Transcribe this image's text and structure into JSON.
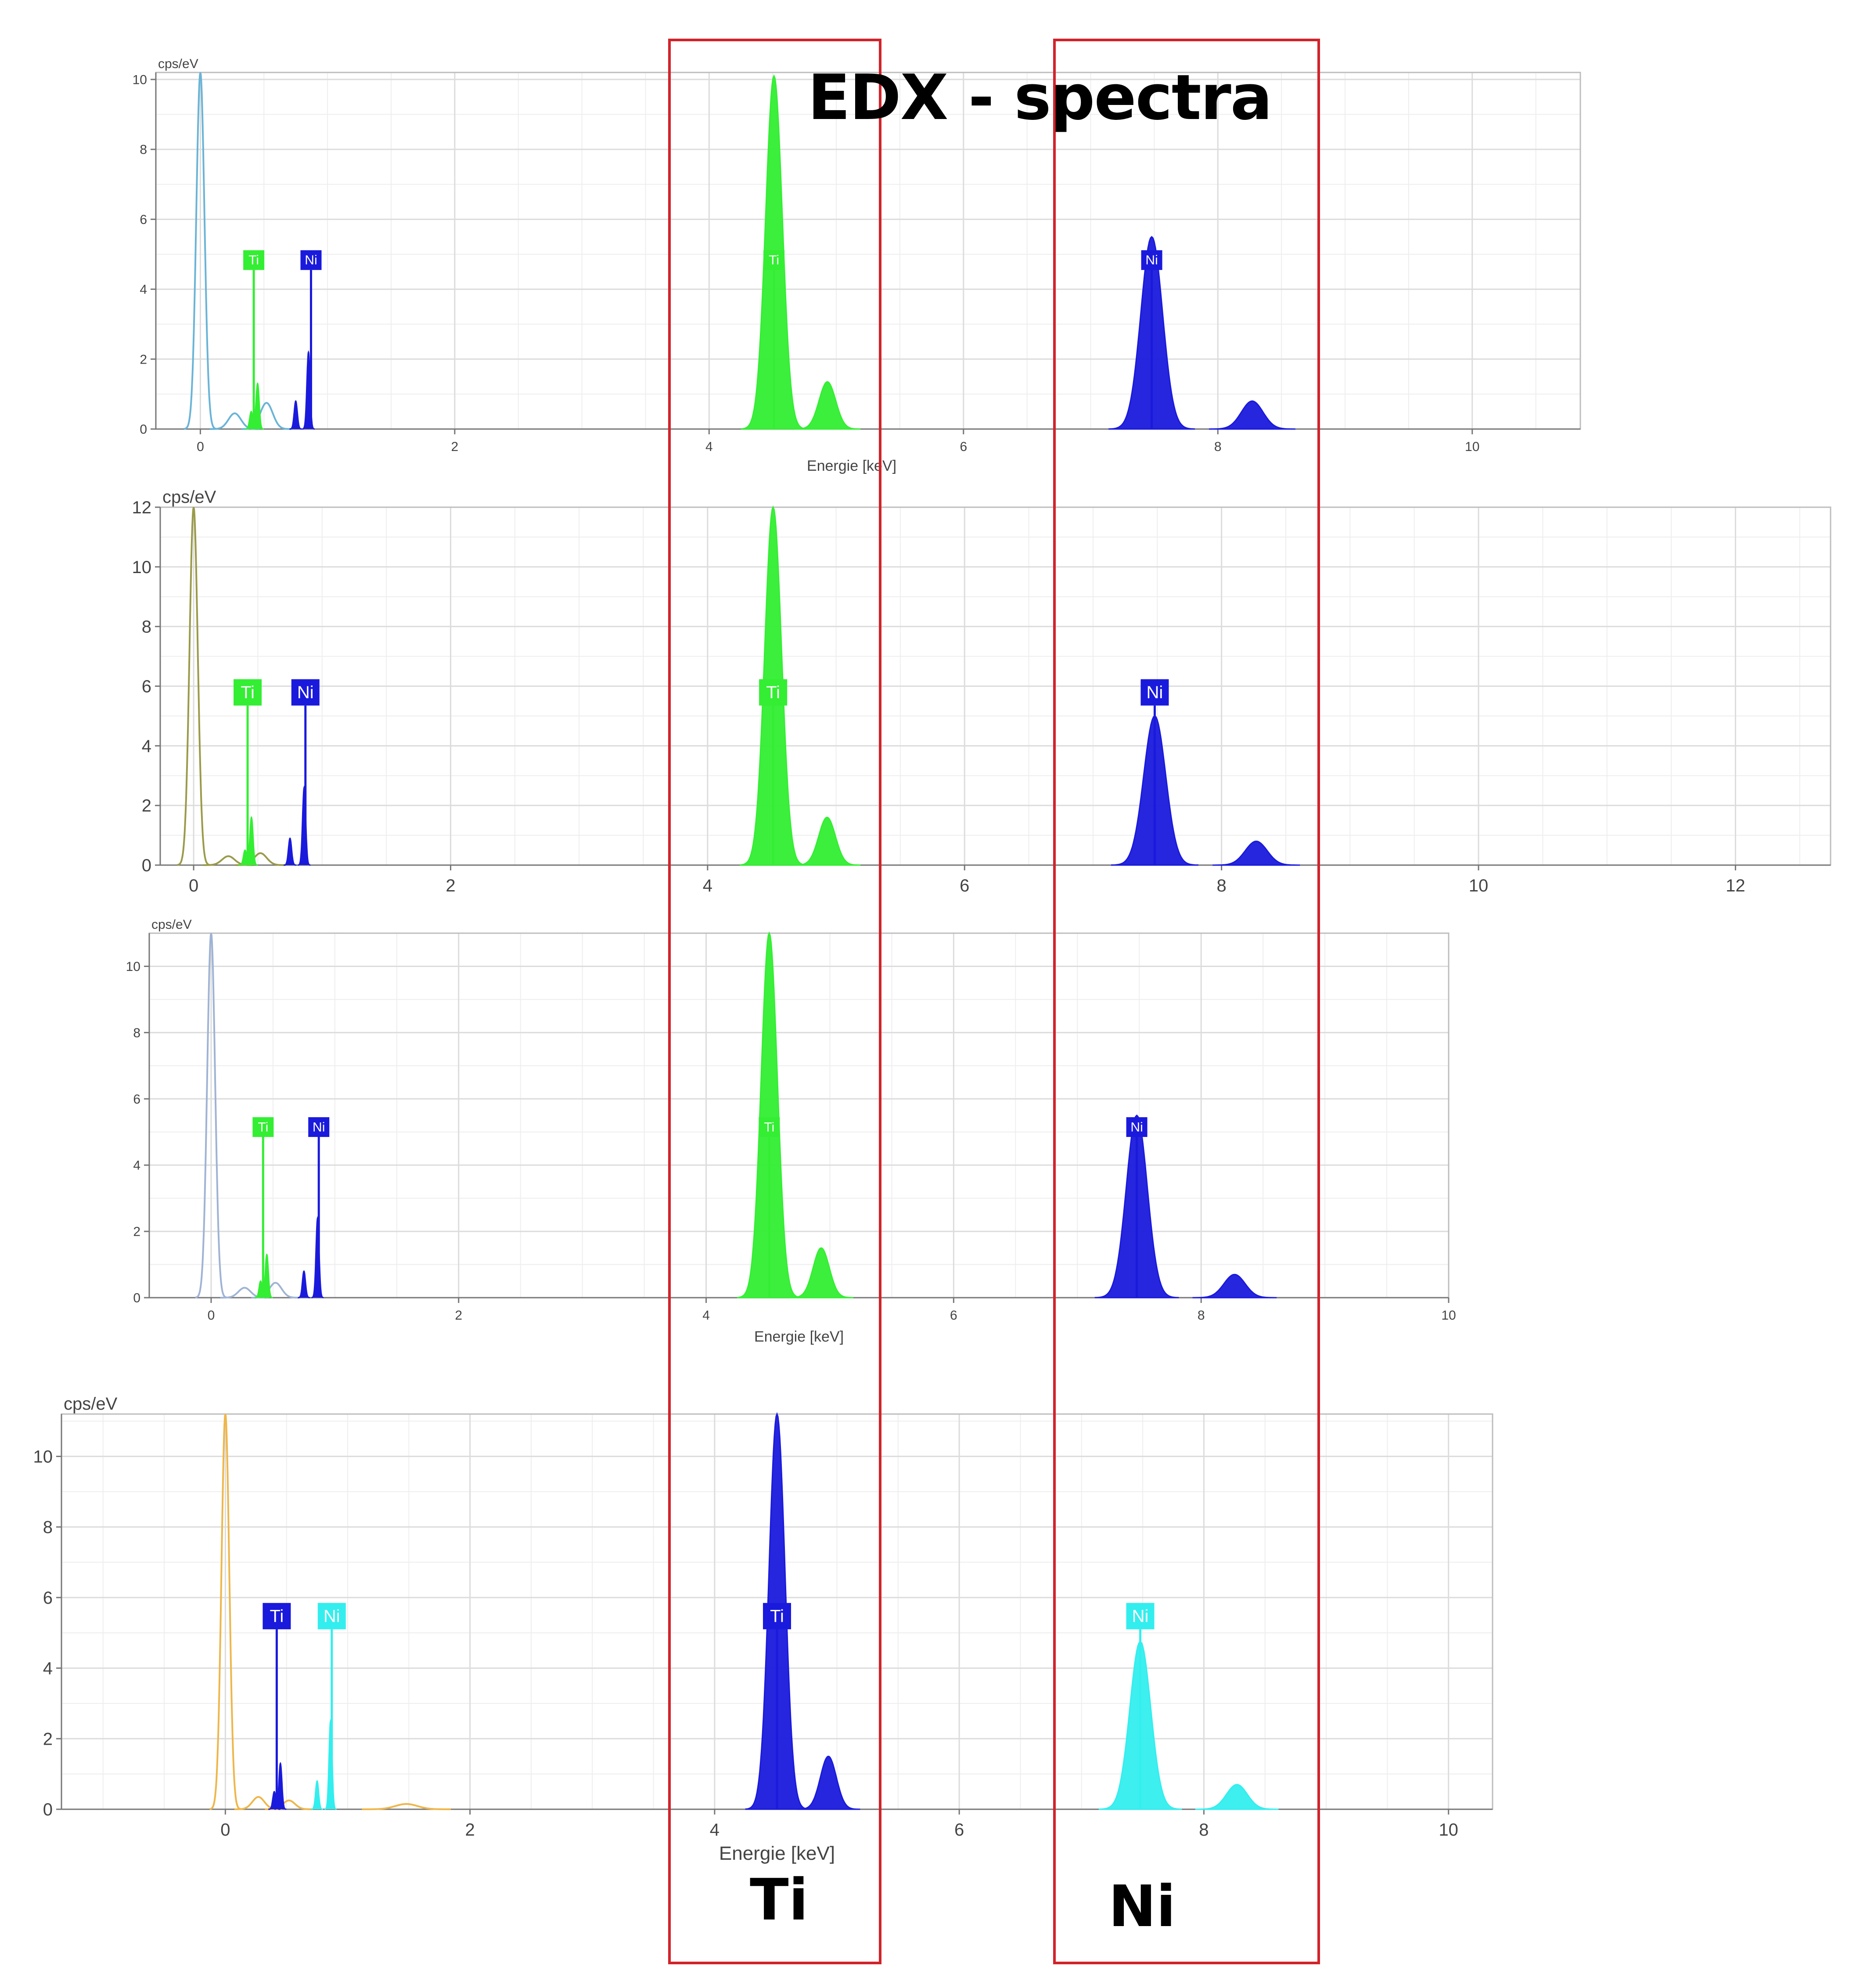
{
  "title": "EDX - spectra",
  "region_labels": {
    "ti": "Ti",
    "ni": "Ni"
  },
  "colors": {
    "ti_green": "#33ee33",
    "ni_blue": "#1a1adc",
    "ni_cyan": "#33eeee",
    "region_box": "#d1232a"
  },
  "chart_data": [
    {
      "type": "line",
      "ylabel": "cps/eV",
      "xlabel": "Energie [keV]",
      "xlim": [
        -0.35,
        10.85
      ],
      "ylim": [
        0,
        10.2
      ],
      "xticks": [
        0,
        2,
        4,
        6,
        8,
        10
      ],
      "yticks": [
        0,
        2,
        4,
        6,
        8,
        10
      ],
      "background_color": "#6ab4d6",
      "series": [
        {
          "name": "Ti",
          "color": "#33ee33",
          "peaks": [
            [
              4.51,
              10.1
            ],
            [
              4.93,
              1.35
            ],
            [
              0.45,
              1.3
            ],
            [
              0.4,
              0.5
            ]
          ]
        },
        {
          "name": "Ni",
          "color": "#1a1adc",
          "peaks": [
            [
              7.48,
              5.5
            ],
            [
              8.27,
              0.8
            ],
            [
              0.85,
              2.2
            ],
            [
              0.75,
              0.8
            ]
          ]
        }
      ],
      "background_peaks": [
        [
          0.0,
          10.2
        ],
        [
          0.27,
          0.45
        ],
        [
          0.52,
          0.75
        ]
      ],
      "markers": [
        {
          "label": "Ti",
          "x": 0.42,
          "y": 4.55,
          "color": "#33ee33"
        },
        {
          "label": "Ni",
          "x": 0.87,
          "y": 4.55,
          "color": "#1a1adc"
        },
        {
          "label": "Ti",
          "x": 4.51,
          "y": 4.55,
          "color": "#33ee33"
        },
        {
          "label": "Ni",
          "x": 7.48,
          "y": 4.55,
          "color": "#1a1adc"
        }
      ]
    },
    {
      "type": "line",
      "ylabel": "cps/eV",
      "xlabel": "",
      "xlim": [
        -0.26,
        12.74
      ],
      "ylim": [
        0,
        12
      ],
      "xticks": [
        0,
        2,
        4,
        6,
        8,
        10,
        12
      ],
      "yticks": [
        0,
        2,
        4,
        6,
        8,
        10,
        12
      ],
      "background_color": "#9a9a4a",
      "series": [
        {
          "name": "Ti",
          "color": "#33ee33",
          "peaks": [
            [
              4.51,
              12.0
            ],
            [
              4.93,
              1.6
            ],
            [
              0.45,
              1.6
            ],
            [
              0.4,
              0.5
            ]
          ]
        },
        {
          "name": "Ni",
          "color": "#1a1adc",
          "peaks": [
            [
              7.48,
              5.0
            ],
            [
              8.27,
              0.8
            ],
            [
              0.86,
              2.6
            ],
            [
              0.75,
              0.9
            ]
          ]
        }
      ],
      "background_peaks": [
        [
          0.0,
          12.0
        ],
        [
          0.27,
          0.3
        ],
        [
          0.52,
          0.4
        ]
      ],
      "markers": [
        {
          "label": "Ti",
          "x": 0.42,
          "y": 5.35,
          "color": "#33ee33"
        },
        {
          "label": "Ni",
          "x": 0.87,
          "y": 5.35,
          "color": "#1a1adc"
        },
        {
          "label": "Ti",
          "x": 4.51,
          "y": 5.35,
          "color": "#33ee33"
        },
        {
          "label": "Ni",
          "x": 7.48,
          "y": 5.35,
          "color": "#1a1adc"
        }
      ]
    },
    {
      "type": "line",
      "ylabel": "cps/eV",
      "xlabel": "Energie [keV]",
      "xlim": [
        -0.5,
        10.0
      ],
      "ylim": [
        0,
        11
      ],
      "xticks": [
        0,
        2,
        4,
        6,
        8,
        10
      ],
      "yticks": [
        0,
        2,
        4,
        6,
        8,
        10
      ],
      "background_color": "#9fb3d4",
      "series": [
        {
          "name": "Ti",
          "color": "#33ee33",
          "peaks": [
            [
              4.51,
              11.0
            ],
            [
              4.93,
              1.5
            ],
            [
              0.45,
              1.3
            ],
            [
              0.4,
              0.5
            ]
          ]
        },
        {
          "name": "Ni",
          "color": "#1a1adc",
          "peaks": [
            [
              7.48,
              5.5
            ],
            [
              8.27,
              0.7
            ],
            [
              0.86,
              2.4
            ],
            [
              0.75,
              0.8
            ]
          ]
        }
      ],
      "background_peaks": [
        [
          0.0,
          11.0
        ],
        [
          0.27,
          0.3
        ],
        [
          0.52,
          0.45
        ]
      ],
      "markers": [
        {
          "label": "Ti",
          "x": 0.42,
          "y": 4.85,
          "color": "#33ee33"
        },
        {
          "label": "Ni",
          "x": 0.87,
          "y": 4.85,
          "color": "#1a1adc"
        },
        {
          "label": "Ti",
          "x": 4.51,
          "y": 4.85,
          "color": "#33ee33"
        },
        {
          "label": "Ni",
          "x": 7.48,
          "y": 4.85,
          "color": "#1a1adc"
        }
      ]
    },
    {
      "type": "line",
      "ylabel": "cps/eV",
      "xlabel": "Energie [keV]",
      "xlim": [
        -1.34,
        10.36
      ],
      "ylim": [
        0,
        11.2
      ],
      "xticks": [
        0,
        2,
        4,
        6,
        8,
        10
      ],
      "yticks": [
        0,
        2,
        4,
        6,
        8,
        10
      ],
      "background_color": "#eeb64a",
      "series": [
        {
          "name": "Ti",
          "color": "#1a1adc",
          "peaks": [
            [
              4.51,
              11.2
            ],
            [
              4.93,
              1.5
            ],
            [
              0.45,
              1.3
            ],
            [
              0.4,
              0.5
            ]
          ]
        },
        {
          "name": "Ni",
          "color": "#33eeee",
          "peaks": [
            [
              7.48,
              4.75
            ],
            [
              8.27,
              0.7
            ],
            [
              0.86,
              2.5
            ],
            [
              0.75,
              0.8
            ]
          ]
        }
      ],
      "background_peaks": [
        [
          0.0,
          11.2
        ],
        [
          0.27,
          0.35
        ],
        [
          0.52,
          0.25
        ],
        [
          1.48,
          0.15
        ]
      ],
      "markers": [
        {
          "label": "Ti",
          "x": 0.42,
          "y": 5.1,
          "color": "#1a1adc"
        },
        {
          "label": "Ni",
          "x": 0.87,
          "y": 5.1,
          "color": "#33eeee"
        },
        {
          "label": "Ti",
          "x": 4.51,
          "y": 5.1,
          "color": "#1a1adc"
        },
        {
          "label": "Ni",
          "x": 7.48,
          "y": 5.1,
          "color": "#33eeee"
        }
      ]
    }
  ]
}
